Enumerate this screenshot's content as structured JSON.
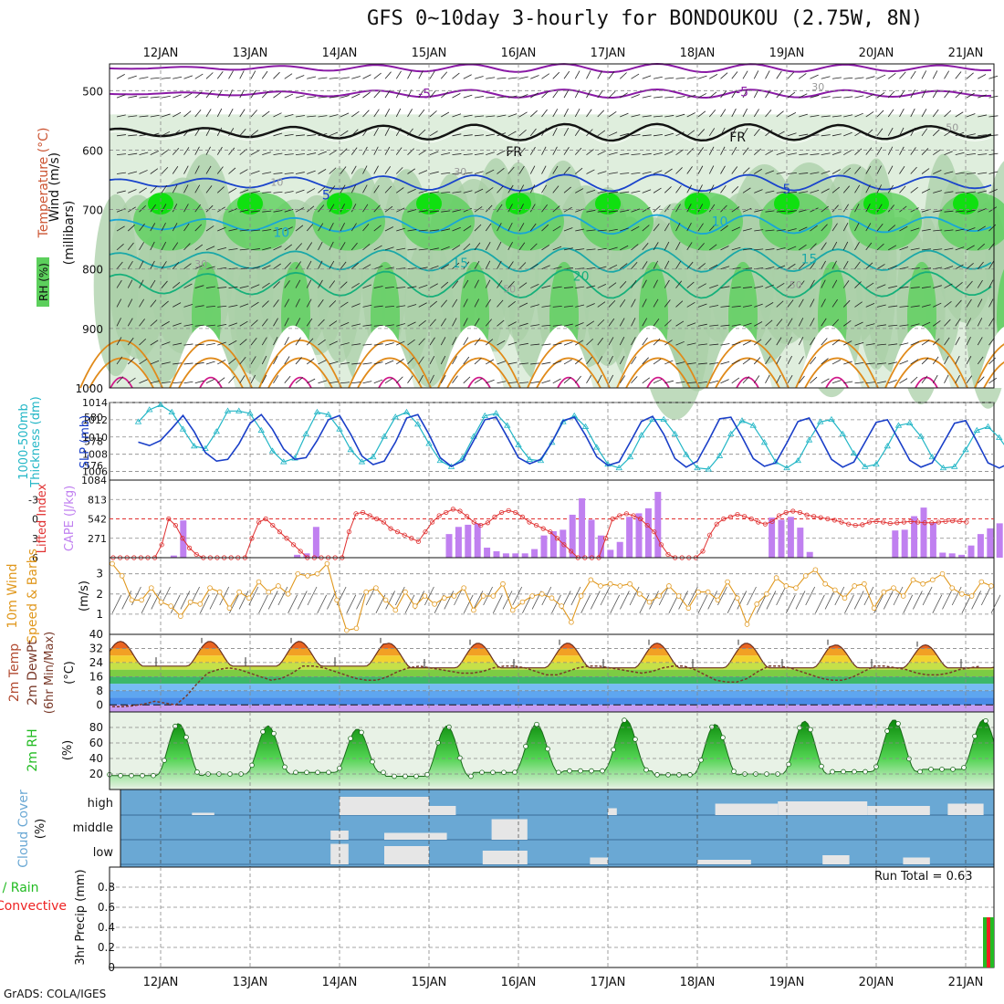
{
  "title": "GFS 0~10day 3-hourly for BONDOUKOU (2.75W, 8N)",
  "credit": "GrADS: COLA/IGES",
  "colors": {
    "purple": "#8a1aa6",
    "black": "#111111",
    "blue": "#1a44cc",
    "lightblue": "#18a6d8",
    "teal": "#1aa8a8",
    "green": "#16b07a",
    "orange": "#e08a1a",
    "magenta": "#d01a8a",
    "rhLight": "#dfeedd",
    "rhMid": "#a9cfa7",
    "rhGreen": "#5ccf5c",
    "rhBright": "#10e010",
    "slp": "#1a3fc8",
    "thick": "#22b6c6",
    "cape": "#c080f0",
    "li": "#e03030",
    "wind": "#e0981e",
    "cloud": "#6aa8d4",
    "cloudFill": "#e6e6e6",
    "rainGreen": "#22bb22",
    "rainRed": "#ee2222"
  },
  "chart_data": {
    "type": "meteogram",
    "date_labels": [
      "12JAN",
      "13JAN",
      "14JAN",
      "15JAN",
      "16JAN",
      "17JAN",
      "18JAN",
      "19JAN",
      "20JAN",
      "21JAN"
    ],
    "panels": [
      {
        "id": "upper",
        "ylabel_parts": [
          "Wind (m/s)",
          "Temperature (°C)",
          "RH (%)",
          "(millibars)"
        ],
        "yticks": [
          500,
          600,
          700,
          800,
          900,
          1000
        ],
        "ylim": [
          1000,
          455
        ],
        "contour_labels": [
          {
            "text": "-5",
            "x": 2.95,
            "y": 505,
            "c": "purple"
          },
          {
            "text": "-5",
            "x": 6.5,
            "y": 502,
            "c": "purple"
          },
          {
            "text": "FR",
            "x": 3.95,
            "y": 602,
            "c": "black"
          },
          {
            "text": "FR",
            "x": 6.45,
            "y": 578,
            "c": "black"
          },
          {
            "text": "5",
            "x": 1.85,
            "y": 675,
            "c": "blue"
          },
          {
            "text": "5",
            "x": 7.0,
            "y": 665,
            "c": "blue"
          },
          {
            "text": "10",
            "x": 1.35,
            "y": 738,
            "c": "lightblue"
          },
          {
            "text": "10",
            "x": 6.25,
            "y": 720,
            "c": "lightblue"
          },
          {
            "text": "15",
            "x": 3.35,
            "y": 790,
            "c": "teal"
          },
          {
            "text": "15",
            "x": 7.25,
            "y": 783,
            "c": "teal"
          },
          {
            "text": "20",
            "x": 4.7,
            "y": 812,
            "c": "green"
          },
          {
            "text": "30",
            "x": 0.45,
            "y": 790,
            "c": "grey"
          },
          {
            "text": "50",
            "x": 3.9,
            "y": 832,
            "c": "grey"
          },
          {
            "text": "50",
            "x": 7.1,
            "y": 825,
            "c": "grey"
          },
          {
            "text": "30",
            "x": 7.35,
            "y": 492,
            "c": "grey"
          },
          {
            "text": "50",
            "x": 8.85,
            "y": 560,
            "c": "grey"
          },
          {
            "text": "10",
            "x": 1.3,
            "y": 652,
            "c": "grey"
          },
          {
            "text": "30",
            "x": 3.35,
            "y": 635,
            "c": "grey"
          }
        ]
      },
      {
        "id": "thickness",
        "ylabel_left": "Thickness (dm)",
        "ylabel_left2": "1000-500mb",
        "ylabel_right": "SLP (mb)",
        "yticks_left": [
          576,
          578,
          580
        ],
        "yticks_right": [
          1006,
          1008,
          1010,
          1012,
          1014
        ],
        "slp_range": [
          1005,
          1014
        ],
        "thick_range": [
          574.8,
          581.2
        ],
        "slp": [
          1009.4,
          1009.0,
          1009.6,
          1011.0,
          1012.5,
          1010.6,
          1008.2,
          1007.2,
          1007.4,
          1009.2,
          1011.6,
          1012.6,
          1010.9,
          1008.6,
          1007.4,
          1007.6,
          1009.6,
          1012.0,
          1012.5,
          1010.3,
          1007.8,
          1006.8,
          1007.2,
          1009.4,
          1012.2,
          1012.6,
          1010.3,
          1007.6,
          1006.6,
          1007.2,
          1009.6,
          1012.0,
          1012.3,
          1010.0,
          1007.6,
          1006.9,
          1007.4,
          1009.4,
          1011.9,
          1012.3,
          1010.2,
          1007.7,
          1006.7,
          1007.1,
          1009.4,
          1011.8,
          1012.4,
          1010.3,
          1007.5,
          1006.5,
          1007.2,
          1009.6,
          1012.1,
          1012.3,
          1010.0,
          1007.5,
          1006.6,
          1007.0,
          1009.3,
          1011.8,
          1012.2,
          1009.9,
          1007.4,
          1006.5,
          1007.1,
          1009.4,
          1011.7,
          1012.0,
          1009.7,
          1007.3,
          1006.5,
          1007.0,
          1009.3,
          1011.6,
          1011.9,
          1009.5,
          1007.0,
          1006.4,
          1007.0,
          1009.1,
          1011.5,
          1012.2
        ],
        "thick": [
          579.6,
          580.6,
          581.0,
          580.4,
          579.0,
          577.6,
          577.4,
          578.8,
          580.5,
          580.5,
          580.3,
          578.9,
          577.2,
          576.3,
          576.6,
          578.6,
          580.4,
          580.2,
          579.0,
          577.3,
          576.3,
          576.7,
          578.4,
          580.0,
          580.4,
          579.4,
          577.8,
          576.4,
          575.9,
          576.6,
          578.4,
          580.1,
          580.3,
          579.3,
          577.7,
          576.5,
          576.4,
          577.9,
          579.6,
          580.1,
          579.2,
          577.5,
          576.1,
          575.8,
          576.7,
          578.5,
          579.8,
          579.8,
          578.6,
          576.9,
          575.8,
          575.7,
          576.8,
          578.6,
          579.7,
          579.3,
          577.9,
          576.3,
          575.8,
          576.4,
          578.1,
          579.6,
          579.8,
          578.6,
          577.0,
          575.9,
          576.1,
          577.6,
          579.3,
          579.5,
          578.4,
          576.7,
          575.8,
          575.9,
          577.3,
          578.9,
          579.2,
          578.3,
          577.0,
          576.0,
          575.9,
          576.9
        ]
      },
      {
        "id": "cape",
        "ylabel_left": "Lifted Index",
        "ylabel_right": "CAPE (J/kg)",
        "yticks_left": [
          -3,
          0,
          3,
          6
        ],
        "yticks_right": [
          271,
          542,
          813,
          1084
        ],
        "cape": [
          0,
          0,
          0,
          0,
          0,
          0,
          30,
          520,
          0,
          0,
          0,
          0,
          0,
          0,
          0,
          0,
          0,
          0,
          0,
          40,
          60,
          430,
          0,
          0,
          0,
          0,
          0,
          0,
          0,
          0,
          0,
          0,
          0,
          0,
          0,
          330,
          430,
          460,
          480,
          140,
          90,
          60,
          60,
          60,
          120,
          310,
          370,
          390,
          600,
          830,
          530,
          310,
          110,
          220,
          570,
          620,
          690,
          920,
          0,
          0,
          0,
          0,
          0,
          0,
          0,
          0,
          0,
          0,
          0,
          560,
          530,
          570,
          420,
          80,
          0,
          0,
          0,
          0,
          0,
          0,
          0,
          0,
          380,
          390,
          580,
          700,
          490,
          70,
          60,
          40,
          170,
          330,
          410,
          480
        ],
        "li": [
          6,
          6,
          6,
          6,
          6,
          6,
          6,
          4,
          0,
          1,
          3,
          4.5,
          5.5,
          6,
          6,
          6,
          6,
          6,
          6,
          6,
          3,
          0.5,
          0,
          1,
          2,
          3,
          4,
          5,
          6,
          6,
          6,
          6,
          6,
          6,
          2,
          -0.8,
          -1,
          -0.5,
          0,
          0.5,
          1.5,
          2,
          2.5,
          3,
          3.5,
          2,
          0.5,
          -0.5,
          -1,
          -1.5,
          -1.2,
          -0.4,
          0.5,
          1,
          0.6,
          -0.3,
          -1,
          -1.3,
          -1,
          -0.3,
          0.5,
          1,
          1.5,
          2,
          3,
          4,
          5,
          6,
          6,
          6,
          6,
          3,
          0,
          -0.5,
          -0.8,
          -0.5,
          0,
          1,
          2,
          4,
          5.5,
          6,
          6,
          6,
          6,
          5,
          2.5,
          0.8,
          0,
          -0.3,
          -0.7,
          -0.4,
          0,
          0.5,
          0.8,
          0.4,
          -0.5,
          -1,
          -1.2,
          -1,
          -0.6,
          -0.4,
          -0.2,
          0,
          0.2,
          0.5,
          0.8,
          1,
          0.9,
          0.5,
          0.4,
          0.5,
          0.7,
          0.6,
          0.5,
          0.4,
          0.5,
          0.6,
          0.6,
          0.5,
          0.4,
          0.3,
          0.4,
          0.5
        ]
      },
      {
        "id": "wind",
        "ylabel_main": "10m Wind",
        "ylabel_sub": "Speed & Barbs",
        "ylabel_unit": "(m/s)",
        "yticks": [
          1,
          2,
          3
        ],
        "ylim": [
          0,
          3.8
        ],
        "speed": [
          3.5,
          2.9,
          1.7,
          1.7,
          2.3,
          1.6,
          1.4,
          0.9,
          1.6,
          1.5,
          2.3,
          2.1,
          1.3,
          2.1,
          1.8,
          2.6,
          2.1,
          2.4,
          2.0,
          3.0,
          2.9,
          3.0,
          3.5,
          1.7,
          0.2,
          0.3,
          2.1,
          2.3,
          1.7,
          1.2,
          2.1,
          1.4,
          1.9,
          1.5,
          1.8,
          1.9,
          2.3,
          1.2,
          1.9,
          1.9,
          2.5,
          1.2,
          1.6,
          1.9,
          2.0,
          1.8,
          1.4,
          0.6,
          1.9,
          2.7,
          2.4,
          2.5,
          2.4,
          2.5,
          2.0,
          1.6,
          1.9,
          2.4,
          1.9,
          1.3,
          2.1,
          2.1,
          1.7,
          2.6,
          1.8,
          0.5,
          1.5,
          2.0,
          2.8,
          2.4,
          2.3,
          2.9,
          3.2,
          2.5,
          2.2,
          1.8,
          2.4,
          2.5,
          1.3,
          2.1,
          2.3,
          1.9,
          2.7,
          2.5,
          2.7,
          3.0,
          2.3,
          2.0,
          1.9,
          2.6,
          2.4
        ]
      },
      {
        "id": "temp",
        "ylabel_main": "2m Temp",
        "ylabel_sub": "2m DewPt",
        "ylabel_sub2": "(6hr Min/Max)",
        "ylabel_unit": "(°C)",
        "yticks": [
          0,
          8,
          16,
          24,
          32,
          40
        ],
        "ylim": [
          -4,
          40
        ],
        "temp_peaks": [
          36,
          36,
          36,
          35,
          35,
          35,
          35,
          35,
          34,
          34
        ],
        "temp_troughs": [
          22,
          22,
          22,
          21,
          21,
          21,
          21,
          21,
          21,
          21
        ],
        "dew": [
          -1,
          -1,
          -0.5,
          0.5,
          2,
          1,
          0,
          5,
          12,
          18,
          20,
          21,
          20,
          18,
          16,
          14,
          15,
          18,
          22,
          22,
          21,
          19,
          17,
          15,
          14,
          14,
          16,
          19,
          21,
          22,
          21,
          20,
          19,
          18,
          18,
          19,
          21,
          22,
          22,
          21,
          19,
          17,
          17,
          19,
          21,
          22,
          22,
          21,
          20,
          19,
          18,
          19,
          21,
          22,
          22,
          20,
          17,
          14,
          13,
          13,
          15,
          19,
          22,
          22,
          21,
          19,
          17,
          15,
          14,
          14,
          16,
          19,
          22,
          22,
          21,
          20,
          18,
          17,
          17,
          18,
          20,
          21,
          22
        ]
      },
      {
        "id": "rh",
        "ylabel_main": "2m RH",
        "ylabel_unit": "(%)",
        "yticks": [
          20,
          40,
          60,
          80
        ],
        "ylim": [
          0,
          100
        ],
        "peaks": [
          85,
          82,
          78,
          82,
          84,
          90,
          84,
          88,
          90,
          90
        ],
        "troughs": [
          18,
          20,
          22,
          17,
          22,
          24,
          19,
          20,
          23,
          26
        ]
      },
      {
        "id": "cloud",
        "ylabel_main": "Cloud Cover",
        "ylabel_unit": "(%)",
        "levels": [
          "high",
          "middle",
          "low"
        ]
      },
      {
        "id": "precip",
        "ylabel_main": "Total / Rain",
        "ylabel_sub": "Convective",
        "ylabel_unit": "3hr Precip (mm)",
        "yticks": [
          0,
          0.2,
          0.4,
          0.6,
          0.8
        ],
        "ylim": [
          0,
          1.0
        ],
        "run_total": "Run Total = 0.63",
        "total_last": 0.5
      }
    ]
  }
}
